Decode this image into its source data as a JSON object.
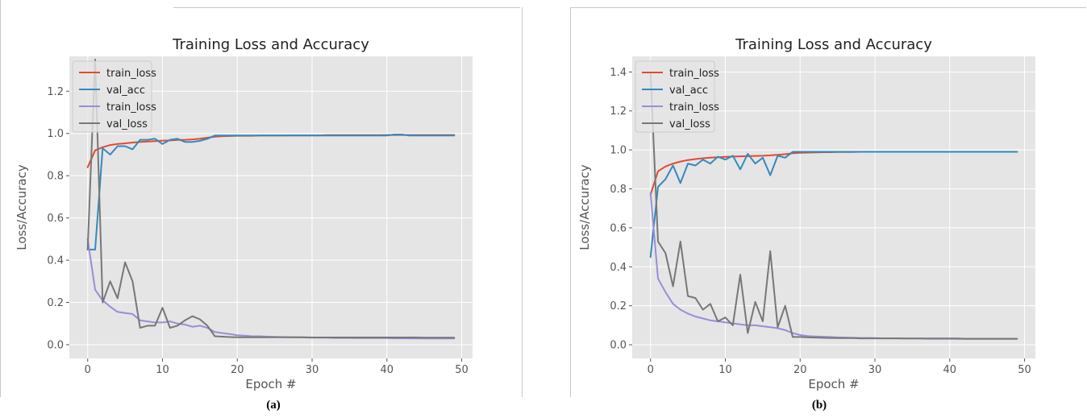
{
  "captions": [
    "(a)",
    "(b)"
  ],
  "colors": {
    "background": "#e5e5e5",
    "grid": "#ffffff",
    "series": [
      "#e24a33",
      "#348abd",
      "#988ed5",
      "#777777"
    ]
  },
  "chart_data": [
    {
      "type": "line",
      "title": "Training Loss and Accuracy",
      "xlabel": "Epoch #",
      "ylabel": "Loss/Accuracy",
      "xlim": [
        -2.45,
        51.45
      ],
      "ylim": [
        -0.065,
        1.365
      ],
      "xticks": [
        0,
        10,
        20,
        30,
        40,
        50
      ],
      "yticks": [
        0.0,
        0.2,
        0.4,
        0.6,
        0.8,
        1.0,
        1.2
      ],
      "ytick_labels": [
        "0.0",
        "0.2",
        "0.4",
        "0.6",
        "0.8",
        "1.0",
        "1.2"
      ],
      "grid": true,
      "legend": "upper-left",
      "x": [
        0,
        1,
        2,
        3,
        4,
        5,
        6,
        7,
        8,
        9,
        10,
        11,
        12,
        13,
        14,
        15,
        16,
        17,
        18,
        19,
        20,
        21,
        22,
        23,
        24,
        25,
        26,
        27,
        28,
        29,
        30,
        31,
        32,
        33,
        34,
        35,
        36,
        37,
        38,
        39,
        40,
        41,
        42,
        43,
        44,
        45,
        46,
        47,
        48,
        49
      ],
      "series": [
        {
          "name": "train_loss",
          "values": [
            0.84,
            0.92,
            0.935,
            0.945,
            0.95,
            0.953,
            0.957,
            0.96,
            0.962,
            0.964,
            0.966,
            0.967,
            0.969,
            0.97,
            0.972,
            0.975,
            0.98,
            0.985,
            0.987,
            0.988,
            0.989,
            0.989,
            0.989,
            0.99,
            0.99,
            0.99,
            0.99,
            0.991,
            0.991,
            0.991,
            0.991,
            0.991,
            0.992,
            0.992,
            0.992,
            0.992,
            0.992,
            0.992,
            0.992,
            0.992,
            0.993,
            0.993,
            0.993,
            0.993,
            0.993,
            0.993,
            0.993,
            0.993,
            0.993,
            0.993
          ]
        },
        {
          "name": "val_acc",
          "values": [
            0.45,
            0.45,
            0.93,
            0.9,
            0.94,
            0.94,
            0.925,
            0.97,
            0.97,
            0.975,
            0.95,
            0.97,
            0.975,
            0.96,
            0.96,
            0.965,
            0.975,
            0.99,
            0.99,
            0.99,
            0.99,
            0.99,
            0.99,
            0.99,
            0.99,
            0.99,
            0.99,
            0.99,
            0.99,
            0.99,
            0.99,
            0.99,
            0.99,
            0.99,
            0.99,
            0.99,
            0.99,
            0.99,
            0.99,
            0.99,
            0.99,
            0.995,
            0.995,
            0.99,
            0.99,
            0.99,
            0.99,
            0.99,
            0.99,
            0.99
          ]
        },
        {
          "name": "train_loss",
          "values": [
            0.5,
            0.26,
            0.21,
            0.18,
            0.155,
            0.15,
            0.145,
            0.115,
            0.11,
            0.105,
            0.105,
            0.11,
            0.1,
            0.095,
            0.085,
            0.09,
            0.08,
            0.06,
            0.055,
            0.05,
            0.045,
            0.043,
            0.04,
            0.04,
            0.038,
            0.037,
            0.036,
            0.035,
            0.035,
            0.034,
            0.033,
            0.033,
            0.033,
            0.032,
            0.032,
            0.032,
            0.031,
            0.031,
            0.031,
            0.031,
            0.031,
            0.03,
            0.03,
            0.03,
            0.029,
            0.029,
            0.029,
            0.029,
            0.029,
            0.029
          ]
        },
        {
          "name": "val_loss",
          "values": [
            0.45,
            1.35,
            0.2,
            0.3,
            0.22,
            0.39,
            0.3,
            0.08,
            0.09,
            0.09,
            0.175,
            0.08,
            0.09,
            0.115,
            0.135,
            0.12,
            0.09,
            0.04,
            0.038,
            0.036,
            0.035,
            0.035,
            0.035,
            0.035,
            0.035,
            0.035,
            0.035,
            0.035,
            0.035,
            0.035,
            0.034,
            0.034,
            0.034,
            0.034,
            0.034,
            0.034,
            0.034,
            0.034,
            0.034,
            0.034,
            0.034,
            0.034,
            0.034,
            0.034,
            0.034,
            0.033,
            0.033,
            0.033,
            0.033,
            0.033
          ]
        }
      ]
    },
    {
      "type": "line",
      "title": "Training Loss and Accuracy",
      "xlabel": "Epoch #",
      "ylabel": "Loss/Accuracy",
      "xlim": [
        -2.45,
        51.45
      ],
      "ylim": [
        -0.07,
        1.48
      ],
      "xticks": [
        0,
        10,
        20,
        30,
        40,
        50
      ],
      "yticks": [
        0.0,
        0.2,
        0.4,
        0.6,
        0.8,
        1.0,
        1.2,
        1.4
      ],
      "ytick_labels": [
        "0.0",
        "0.2",
        "0.4",
        "0.6",
        "0.8",
        "1.0",
        "1.2",
        "1.4"
      ],
      "grid": true,
      "legend": "upper-left",
      "x": [
        0,
        1,
        2,
        3,
        4,
        5,
        6,
        7,
        8,
        9,
        10,
        11,
        12,
        13,
        14,
        15,
        16,
        17,
        18,
        19,
        20,
        21,
        22,
        23,
        24,
        25,
        26,
        27,
        28,
        29,
        30,
        31,
        32,
        33,
        34,
        35,
        36,
        37,
        38,
        39,
        40,
        41,
        42,
        43,
        44,
        45,
        46,
        47,
        48,
        49
      ],
      "series": [
        {
          "name": "train_loss",
          "values": [
            0.77,
            0.89,
            0.915,
            0.93,
            0.94,
            0.948,
            0.953,
            0.957,
            0.96,
            0.962,
            0.964,
            0.966,
            0.967,
            0.968,
            0.969,
            0.97,
            0.972,
            0.975,
            0.978,
            0.983,
            0.985,
            0.986,
            0.987,
            0.988,
            0.988,
            0.989,
            0.989,
            0.989,
            0.99,
            0.99,
            0.99,
            0.99,
            0.99,
            0.99,
            0.99,
            0.99,
            0.99,
            0.99,
            0.99,
            0.99,
            0.99,
            0.99,
            0.99,
            0.99,
            0.99,
            0.99,
            0.99,
            0.99,
            0.99,
            0.99
          ]
        },
        {
          "name": "val_acc",
          "values": [
            0.45,
            0.81,
            0.85,
            0.92,
            0.83,
            0.93,
            0.92,
            0.95,
            0.93,
            0.965,
            0.95,
            0.97,
            0.9,
            0.98,
            0.93,
            0.96,
            0.87,
            0.97,
            0.96,
            0.99,
            0.99,
            0.99,
            0.99,
            0.99,
            0.99,
            0.99,
            0.99,
            0.99,
            0.99,
            0.99,
            0.99,
            0.99,
            0.99,
            0.99,
            0.99,
            0.99,
            0.99,
            0.99,
            0.99,
            0.99,
            0.99,
            0.99,
            0.99,
            0.99,
            0.99,
            0.99,
            0.99,
            0.99,
            0.99,
            0.99
          ]
        },
        {
          "name": "train_loss",
          "values": [
            0.78,
            0.34,
            0.27,
            0.21,
            0.18,
            0.16,
            0.145,
            0.135,
            0.125,
            0.12,
            0.115,
            0.11,
            0.105,
            0.1,
            0.1,
            0.095,
            0.09,
            0.085,
            0.075,
            0.06,
            0.05,
            0.045,
            0.043,
            0.041,
            0.04,
            0.038,
            0.037,
            0.036,
            0.035,
            0.035,
            0.034,
            0.033,
            0.033,
            0.033,
            0.032,
            0.032,
            0.032,
            0.031,
            0.031,
            0.031,
            0.031,
            0.03,
            0.03,
            0.03,
            0.03,
            0.03,
            0.03,
            0.03,
            0.03,
            0.03
          ]
        },
        {
          "name": "val_loss",
          "values": [
            1.4,
            0.53,
            0.47,
            0.3,
            0.53,
            0.25,
            0.24,
            0.18,
            0.21,
            0.12,
            0.14,
            0.1,
            0.36,
            0.06,
            0.22,
            0.12,
            0.48,
            0.09,
            0.2,
            0.04,
            0.04,
            0.038,
            0.037,
            0.036,
            0.035,
            0.034,
            0.034,
            0.034,
            0.033,
            0.033,
            0.033,
            0.033,
            0.033,
            0.033,
            0.032,
            0.032,
            0.032,
            0.032,
            0.032,
            0.032,
            0.032,
            0.032,
            0.031,
            0.031,
            0.031,
            0.031,
            0.031,
            0.031,
            0.031,
            0.031
          ]
        }
      ]
    }
  ]
}
